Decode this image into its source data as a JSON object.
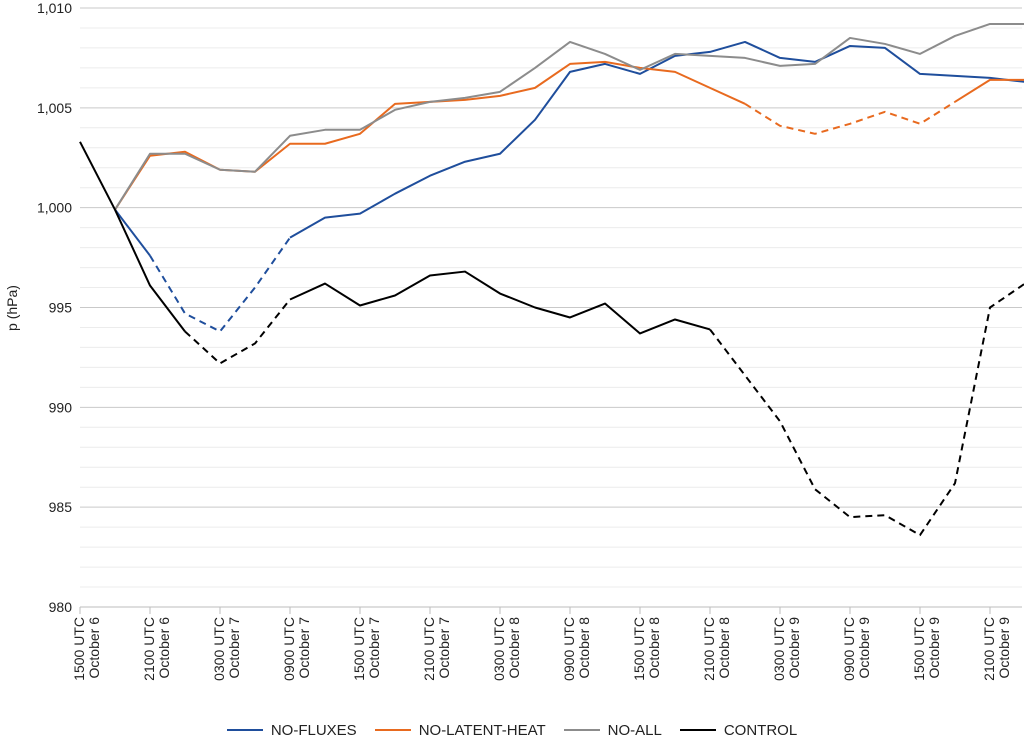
{
  "chart_data": {
    "type": "line",
    "title": "",
    "xlabel": "",
    "ylabel": "p (hPa)",
    "ylim": [
      980,
      1010
    ],
    "y_ticks": [
      980,
      985,
      990,
      995,
      1000,
      1005,
      1010
    ],
    "y_tick_labels": [
      "980",
      "985",
      "990",
      "995",
      "1,000",
      "1,005",
      "1,010"
    ],
    "y_minor_grid_step": 1,
    "grid": true,
    "legend_position": "bottom",
    "x_tick_labels": [
      {
        "line1": "1500 UTC",
        "line2": "October 6"
      },
      {
        "line1": "2100 UTC",
        "line2": "October 6"
      },
      {
        "line1": "0300 UTC",
        "line2": "October 7"
      },
      {
        "line1": "0900 UTC",
        "line2": "October 7"
      },
      {
        "line1": "1500 UTC",
        "line2": "October 7"
      },
      {
        "line1": "2100 UTC",
        "line2": "October 7"
      },
      {
        "line1": "0300 UTC",
        "line2": "October 8"
      },
      {
        "line1": "0900 UTC",
        "line2": "October 8"
      },
      {
        "line1": "1500 UTC",
        "line2": "October 8"
      },
      {
        "line1": "2100 UTC",
        "line2": "October 8"
      },
      {
        "line1": "0300 UTC",
        "line2": "October 9"
      },
      {
        "line1": "0900 UTC",
        "line2": "October 9"
      },
      {
        "line1": "1500 UTC",
        "line2": "October 9"
      },
      {
        "line1": "2100 UTC",
        "line2": "October 9"
      }
    ],
    "x_hours_after_first_tick": [
      0,
      3,
      6,
      9,
      12,
      15,
      18,
      21,
      24,
      27,
      30,
      33,
      36,
      39,
      42,
      45,
      48,
      51,
      54,
      57,
      60,
      63,
      66,
      69,
      72,
      75,
      78,
      81
    ],
    "series": [
      {
        "name": "NO-FLUXES",
        "color": "#1f4e9c",
        "values": [
          null,
          999.9,
          997.6,
          994.7,
          993.8,
          996.0,
          998.5,
          999.5,
          999.7,
          1000.7,
          1001.6,
          1002.3,
          1002.7,
          1004.4,
          1006.8,
          1007.2,
          1006.7,
          1007.6,
          1007.8,
          1008.3,
          1007.5,
          1007.3,
          1008.1,
          1008.0,
          1006.7,
          1006.6,
          1006.5,
          1006.3
        ],
        "dashed_ranges": [
          [
            2,
            6
          ]
        ]
      },
      {
        "name": "NO-LATENT-HEAT",
        "color": "#e86a1f",
        "values": [
          null,
          999.9,
          1002.6,
          1002.8,
          1001.9,
          1001.8,
          1003.2,
          1003.2,
          1003.7,
          1005.2,
          1005.3,
          1005.4,
          1005.6,
          1006.0,
          1007.2,
          1007.3,
          1007.0,
          1006.8,
          1006.0,
          1005.2,
          1004.1,
          1003.7,
          1004.2,
          1004.8,
          1004.2,
          1005.3,
          1006.4,
          1006.4
        ],
        "dashed_ranges": [
          [
            19,
            25
          ]
        ]
      },
      {
        "name": "NO-ALL",
        "color": "#8c8c8c",
        "values": [
          null,
          999.9,
          1002.7,
          1002.7,
          1001.9,
          1001.8,
          1003.6,
          1003.9,
          1003.9,
          1004.9,
          1005.3,
          1005.5,
          1005.8,
          1007.0,
          1008.3,
          1007.7,
          1006.9,
          1007.7,
          1007.6,
          1007.5,
          1007.1,
          1007.2,
          1008.5,
          1008.2,
          1007.7,
          1008.6,
          1009.2,
          1009.2
        ],
        "dashed_ranges": []
      },
      {
        "name": "CONTROL",
        "color": "#000000",
        "values": [
          1003.3,
          999.9,
          996.1,
          993.8,
          992.2,
          993.2,
          995.4,
          996.2,
          995.1,
          995.6,
          996.6,
          996.8,
          995.7,
          995.0,
          994.5,
          995.2,
          993.7,
          994.4,
          993.9,
          991.6,
          989.3,
          985.9,
          984.5,
          984.6,
          983.6,
          986.2,
          995.0,
          996.2
        ],
        "dashed_ranges": [
          [
            3,
            6
          ],
          [
            18,
            27
          ]
        ]
      }
    ]
  }
}
